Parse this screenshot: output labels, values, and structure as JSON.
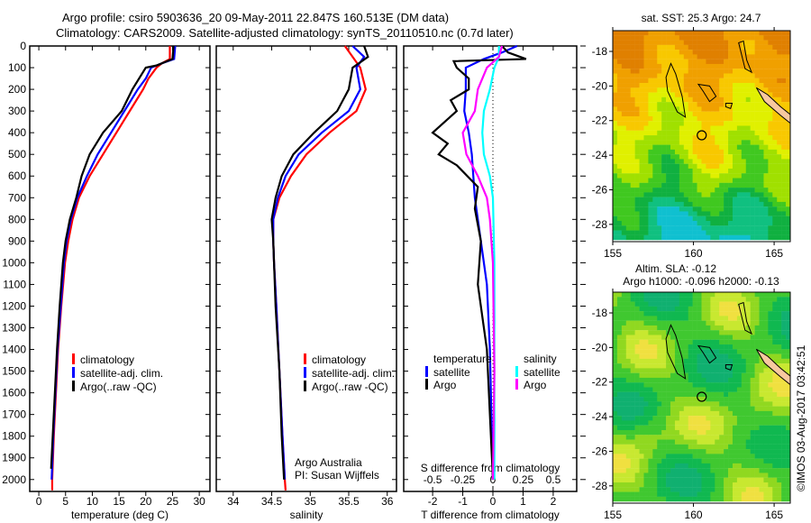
{
  "title_line1": "Argo profile: csiro 5903636_20 09-May-2011 22.847S 160.513E (DM data)",
  "title_line2": "Climatology: CARS2009. Satellite-adjusted climatology: synTS_20110510.nc (0.7d later)",
  "credit": "©IMOS 03-Aug-2017 03:42:51",
  "colors": {
    "climatology": "#ff0000",
    "satellite": "#0000ff",
    "argo": "#000000",
    "sal_sat": "#00ffff",
    "sal_argo": "#ff00ff"
  },
  "chart_data": [
    {
      "type": "line",
      "name": "temperature",
      "xlabel": "temperature (deg C)",
      "ylabel": "",
      "xlim": [
        -1.7,
        32
      ],
      "ylim": [
        2055,
        0
      ],
      "xticks": [
        0,
        5,
        10,
        15,
        20,
        25,
        30
      ],
      "yticks": [
        0,
        100,
        200,
        300,
        400,
        500,
        600,
        700,
        800,
        900,
        1000,
        1100,
        1200,
        1300,
        1400,
        1500,
        1600,
        1700,
        1800,
        1900,
        2000
      ],
      "legend": [
        "climatology",
        "satellite-adj. clim.",
        "Argo(..raw -QC)"
      ],
      "series": [
        {
          "name": "climatology",
          "color": "#ff0000",
          "depth": [
            0,
            60,
            80,
            100,
            150,
            200,
            300,
            400,
            500,
            600,
            700,
            800,
            900,
            1000,
            1200,
            1400,
            1600,
            1800,
            2000,
            2050
          ],
          "values": [
            24.5,
            24.5,
            23,
            22,
            20.5,
            19.5,
            17,
            14.5,
            12,
            9.5,
            7.5,
            6.3,
            5.5,
            4.9,
            4.2,
            3.6,
            3.2,
            2.8,
            2.5,
            2.5
          ]
        },
        {
          "name": "satellite-adj. clim.",
          "color": "#0000ff",
          "depth": [
            0,
            60,
            80,
            100,
            150,
            200,
            300,
            400,
            500,
            600,
            700,
            800,
            900,
            1000,
            1200,
            1400,
            1600,
            1800,
            2000
          ],
          "values": [
            25.5,
            25.3,
            23,
            21,
            20,
            18.5,
            16,
            13.5,
            11,
            9,
            7.2,
            6,
            5.2,
            4.7,
            4.1,
            3.5,
            3.1,
            2.7,
            2.4
          ]
        },
        {
          "name": "Argo(..raw -QC)",
          "color": "#000000",
          "depth": [
            0,
            60,
            70,
            90,
            100,
            200,
            300,
            400,
            500,
            600,
            700,
            800,
            900,
            1000,
            1200,
            1400,
            1600,
            1800,
            1950
          ],
          "values": [
            25.2,
            25,
            24,
            22,
            20,
            17.5,
            15.5,
            12,
            9.5,
            8,
            7,
            5.8,
            5,
            4.5,
            3.9,
            3.4,
            3,
            2.6,
            2.3
          ]
        }
      ]
    },
    {
      "type": "line",
      "name": "salinity",
      "xlabel": "salinity",
      "xlim": [
        33.78,
        36.12
      ],
      "ylim": [
        2055,
        0
      ],
      "xticks": [
        34,
        34.5,
        35,
        35.5,
        36
      ],
      "legend": [
        "climatology",
        "satellite-adj. clim.",
        "Argo(..raw -QC)"
      ],
      "annotation": [
        "Argo Australia",
        "PI: Susan Wijffels"
      ],
      "series": [
        {
          "name": "climatology",
          "color": "#ff0000",
          "depth": [
            0,
            50,
            100,
            200,
            300,
            400,
            500,
            600,
            700,
            800,
            900,
            1000,
            1200,
            1500,
            1800,
            2000,
            2050
          ],
          "values": [
            35.45,
            35.55,
            35.65,
            35.72,
            35.6,
            35.25,
            34.95,
            34.75,
            34.6,
            34.52,
            34.52,
            34.53,
            34.56,
            34.6,
            34.64,
            34.67,
            34.68
          ]
        },
        {
          "name": "satellite-adj. clim.",
          "color": "#0000ff",
          "depth": [
            0,
            50,
            100,
            200,
            300,
            400,
            500,
            600,
            700,
            800,
            900,
            1000,
            1200,
            1500,
            1800,
            2000
          ],
          "values": [
            35.55,
            35.7,
            35.6,
            35.65,
            35.5,
            35.15,
            34.85,
            34.68,
            34.58,
            34.52,
            34.52,
            34.53,
            34.56,
            34.6,
            34.64,
            34.67
          ]
        },
        {
          "name": "Argo(..raw -QC)",
          "color": "#000000",
          "depth": [
            0,
            50,
            100,
            200,
            300,
            400,
            500,
            600,
            700,
            800,
            900,
            1200,
            1500,
            1800,
            2000
          ],
          "values": [
            35.7,
            35.75,
            35.55,
            35.5,
            35.35,
            35.05,
            34.78,
            34.63,
            34.55,
            34.5,
            34.52,
            34.55,
            34.6,
            34.63,
            34.66
          ]
        }
      ]
    },
    {
      "type": "line",
      "name": "difference",
      "xlabel": "T difference from climatology",
      "x2label": "S difference from climatology",
      "xlim": [
        -2.96,
        2.78
      ],
      "ylim": [
        2055,
        0
      ],
      "xticks": [
        -2,
        -1,
        0,
        1,
        2
      ],
      "x2ticks": [
        -0.5,
        -0.25,
        0,
        0.25,
        0.5
      ],
      "x2ticklabels": [
        "-0.5",
        "-0.25",
        "0",
        "0.25",
        "0.5"
      ],
      "legend_temperature": {
        "title": "temperature",
        "items": [
          "satellite",
          "Argo"
        ]
      },
      "legend_salinity": {
        "title": "salinity",
        "items": [
          "satellite",
          "Argo"
        ]
      },
      "series": [
        {
          "name": "T satellite",
          "color": "#0000ff",
          "depth": [
            0,
            30,
            60,
            100,
            200,
            300,
            400,
            500,
            700,
            900,
            1100,
            1400,
            2000
          ],
          "values": [
            0.8,
            0.3,
            -0.3,
            -0.9,
            -0.9,
            -0.95,
            -0.8,
            -0.7,
            -0.6,
            -0.4,
            -0.2,
            -0.1,
            0
          ]
        },
        {
          "name": "T Argo",
          "color": "#000000",
          "depth": [
            0,
            30,
            60,
            70,
            100,
            150,
            200,
            250,
            300,
            400,
            450,
            500,
            550,
            650,
            750,
            900,
            1100,
            1400,
            1700,
            2000
          ],
          "values": [
            0.3,
            0.5,
            1.1,
            -1.3,
            -1.2,
            -0.8,
            -0.8,
            -1.4,
            -1.2,
            -2,
            -1.5,
            -1.8,
            -1.2,
            -0.5,
            -0.6,
            -0.4,
            -0.5,
            -0.2,
            -0.1,
            0
          ]
        },
        {
          "name": "S satellite",
          "color": "#00ffff",
          "salinity": true,
          "depth": [
            0,
            50,
            100,
            200,
            300,
            400,
            500,
            600,
            700,
            1000,
            2000
          ],
          "values": [
            0.05,
            0.05,
            0.012,
            -0.025,
            -0.075,
            -0.088,
            -0.075,
            -0.025,
            0,
            0.012,
            0.012
          ]
        },
        {
          "name": "S Argo",
          "color": "#ff00ff",
          "salinity": true,
          "depth": [
            0,
            50,
            100,
            200,
            300,
            400,
            500,
            600,
            700,
            800,
            1000,
            1500,
            2000
          ],
          "values": [
            0.075,
            0.05,
            -0.05,
            -0.125,
            -0.15,
            -0.25,
            -0.22,
            -0.125,
            -0.05,
            -0.025,
            0,
            0.012,
            0
          ]
        }
      ]
    },
    {
      "type": "heatmap",
      "name": "sst-map",
      "title": "sat. SST: 25.3 Argo: 24.7",
      "xlim": [
        155,
        166
      ],
      "ylim": [
        -29,
        -16.8
      ],
      "xticks": [
        155,
        160,
        165
      ],
      "yticks": [
        -18,
        -20,
        -22,
        -24,
        -26,
        -28
      ],
      "argo_position": [
        160.513,
        -22.847
      ]
    },
    {
      "type": "heatmap",
      "name": "sla-map",
      "title": "Altim. SLA: -0.12",
      "subtitle": "Argo h1000: -0.096 h2000: -0.13",
      "xlim": [
        155,
        166
      ],
      "ylim": [
        -29,
        -16.8
      ],
      "xticks": [
        155,
        160,
        165
      ],
      "yticks": [
        -18,
        -20,
        -22,
        -24,
        -26,
        -28
      ],
      "argo_position": [
        160.513,
        -22.847
      ]
    }
  ]
}
